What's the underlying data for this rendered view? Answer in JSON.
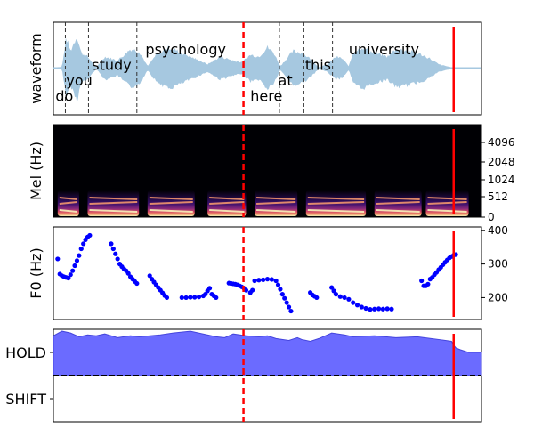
{
  "chart_data": [
    {
      "type": "area",
      "panel": "waveform",
      "ylabel": "waveform",
      "x_range": [
        0,
        1
      ],
      "waveform_color": "#a6c8e0",
      "envelope": {
        "x": [
          0.0,
          0.02,
          0.03,
          0.04,
          0.055,
          0.065,
          0.08,
          0.1,
          0.12,
          0.15,
          0.18,
          0.2,
          0.22,
          0.24,
          0.27,
          0.3,
          0.33,
          0.36,
          0.39,
          0.42,
          0.44,
          0.46,
          0.48,
          0.5,
          0.515,
          0.53,
          0.56,
          0.58,
          0.6,
          0.62,
          0.64,
          0.66,
          0.675,
          0.69,
          0.7,
          0.72,
          0.75,
          0.78,
          0.8,
          0.83,
          0.86,
          0.88,
          0.9,
          0.93,
          0.95,
          0.97,
          1.0
        ],
        "amp": [
          0.02,
          0.03,
          0.8,
          0.45,
          0.85,
          0.4,
          0.3,
          0.02,
          0.3,
          0.2,
          0.5,
          0.45,
          0.05,
          0.35,
          0.55,
          0.4,
          0.25,
          0.1,
          0.3,
          0.2,
          0.15,
          0.35,
          0.3,
          0.55,
          0.4,
          0.05,
          0.45,
          0.4,
          0.25,
          0.02,
          0.1,
          0.3,
          0.25,
          0.05,
          0.4,
          0.55,
          0.4,
          0.3,
          0.5,
          0.45,
          0.35,
          0.25,
          0.1,
          0.02,
          0.02,
          0.02,
          0.02
        ]
      },
      "word_labels": [
        {
          "text": "do",
          "x": 0.005,
          "y": -0.65
        },
        {
          "text": "you",
          "x": 0.03,
          "y": -0.28
        },
        {
          "text": "study",
          "x": 0.09,
          "y": 0.08
        },
        {
          "text": "psychology",
          "x": 0.215,
          "y": 0.45
        },
        {
          "text": "here",
          "x": 0.46,
          "y": -0.65
        },
        {
          "text": "at",
          "x": 0.525,
          "y": -0.28
        },
        {
          "text": "this",
          "x": 0.588,
          "y": 0.08
        },
        {
          "text": "university",
          "x": 0.69,
          "y": 0.45
        }
      ],
      "word_boundaries": [
        0.028,
        0.082,
        0.195,
        0.528,
        0.585,
        0.652
      ]
    },
    {
      "type": "heatmap",
      "panel": "mel-spectrogram",
      "ylabel": "Mel (Hz)",
      "yticks": [
        "0",
        "512",
        "1024",
        "2048",
        "4096"
      ],
      "x_range": [
        0,
        1
      ],
      "active_bands": [
        {
          "x0": 0.01,
          "x1": 0.06
        },
        {
          "x0": 0.08,
          "x1": 0.2
        },
        {
          "x0": 0.22,
          "x1": 0.33
        },
        {
          "x0": 0.36,
          "x1": 0.45
        },
        {
          "x0": 0.47,
          "x1": 0.57
        },
        {
          "x0": 0.59,
          "x1": 0.73
        },
        {
          "x0": 0.75,
          "x1": 0.86
        },
        {
          "x0": 0.87,
          "x1": 0.97
        }
      ]
    },
    {
      "type": "scatter",
      "panel": "pitch",
      "ylabel": "F0 (Hz)",
      "ylim": [
        135,
        410
      ],
      "yticks": [
        200,
        300,
        400
      ],
      "point_color": "#0000ff",
      "points": [
        [
          0.01,
          315
        ],
        [
          0.015,
          270
        ],
        [
          0.02,
          265
        ],
        [
          0.025,
          262
        ],
        [
          0.03,
          260
        ],
        [
          0.035,
          258
        ],
        [
          0.04,
          268
        ],
        [
          0.045,
          280
        ],
        [
          0.05,
          295
        ],
        [
          0.055,
          310
        ],
        [
          0.06,
          325
        ],
        [
          0.065,
          345
        ],
        [
          0.07,
          360
        ],
        [
          0.075,
          372
        ],
        [
          0.08,
          380
        ],
        [
          0.085,
          385
        ],
        [
          0.135,
          360
        ],
        [
          0.14,
          345
        ],
        [
          0.145,
          330
        ],
        [
          0.15,
          315
        ],
        [
          0.155,
          300
        ],
        [
          0.16,
          292
        ],
        [
          0.165,
          285
        ],
        [
          0.17,
          280
        ],
        [
          0.175,
          272
        ],
        [
          0.18,
          262
        ],
        [
          0.185,
          255
        ],
        [
          0.19,
          248
        ],
        [
          0.195,
          242
        ],
        [
          0.225,
          265
        ],
        [
          0.23,
          255
        ],
        [
          0.235,
          246
        ],
        [
          0.24,
          238
        ],
        [
          0.245,
          230
        ],
        [
          0.25,
          222
        ],
        [
          0.255,
          214
        ],
        [
          0.26,
          206
        ],
        [
          0.265,
          200
        ],
        [
          0.3,
          200
        ],
        [
          0.31,
          200
        ],
        [
          0.32,
          201
        ],
        [
          0.33,
          201
        ],
        [
          0.34,
          202
        ],
        [
          0.35,
          205
        ],
        [
          0.355,
          210
        ],
        [
          0.36,
          220
        ],
        [
          0.365,
          228
        ],
        [
          0.37,
          210
        ],
        [
          0.375,
          205
        ],
        [
          0.38,
          200
        ],
        [
          0.41,
          243
        ],
        [
          0.415,
          242
        ],
        [
          0.42,
          241
        ],
        [
          0.425,
          240
        ],
        [
          0.43,
          238
        ],
        [
          0.435,
          235
        ],
        [
          0.44,
          232
        ],
        [
          0.445,
          228
        ],
        [
          0.45,
          222
        ],
        [
          0.46,
          215
        ],
        [
          0.465,
          222
        ],
        [
          0.47,
          250
        ],
        [
          0.48,
          252
        ],
        [
          0.49,
          253
        ],
        [
          0.5,
          255
        ],
        [
          0.51,
          254
        ],
        [
          0.52,
          250
        ],
        [
          0.525,
          238
        ],
        [
          0.53,
          225
        ],
        [
          0.535,
          210
        ],
        [
          0.54,
          198
        ],
        [
          0.545,
          185
        ],
        [
          0.55,
          172
        ],
        [
          0.555,
          160
        ],
        [
          0.6,
          215
        ],
        [
          0.605,
          208
        ],
        [
          0.61,
          204
        ],
        [
          0.615,
          200
        ],
        [
          0.65,
          230
        ],
        [
          0.655,
          220
        ],
        [
          0.66,
          210
        ],
        [
          0.67,
          203
        ],
        [
          0.68,
          200
        ],
        [
          0.69,
          195
        ],
        [
          0.7,
          185
        ],
        [
          0.71,
          178
        ],
        [
          0.72,
          172
        ],
        [
          0.73,
          168
        ],
        [
          0.74,
          165
        ],
        [
          0.75,
          166
        ],
        [
          0.76,
          167
        ],
        [
          0.77,
          166
        ],
        [
          0.78,
          167
        ],
        [
          0.79,
          166
        ],
        [
          0.86,
          250
        ],
        [
          0.865,
          235
        ],
        [
          0.87,
          235
        ],
        [
          0.875,
          240
        ],
        [
          0.88,
          255
        ],
        [
          0.885,
          260
        ],
        [
          0.89,
          268
        ],
        [
          0.895,
          275
        ],
        [
          0.9,
          283
        ],
        [
          0.905,
          290
        ],
        [
          0.91,
          298
        ],
        [
          0.915,
          305
        ],
        [
          0.92,
          312
        ],
        [
          0.925,
          318
        ],
        [
          0.93,
          322
        ],
        [
          0.935,
          326
        ],
        [
          0.94,
          328
        ]
      ]
    },
    {
      "type": "area",
      "panel": "turn-taking",
      "yticks": [
        "HOLD",
        "SHIFT"
      ],
      "threshold": 0.5,
      "fill_color": "#6b6bff",
      "x": [
        0.0,
        0.02,
        0.04,
        0.06,
        0.08,
        0.1,
        0.12,
        0.15,
        0.18,
        0.2,
        0.25,
        0.28,
        0.3,
        0.32,
        0.35,
        0.38,
        0.4,
        0.42,
        0.45,
        0.48,
        0.5,
        0.52,
        0.55,
        0.57,
        0.58,
        0.6,
        0.62,
        0.65,
        0.68,
        0.7,
        0.75,
        0.8,
        0.85,
        0.9,
        0.93,
        0.935,
        0.94,
        0.95,
        0.97,
        0.99,
        1.0
      ],
      "values": [
        0.93,
        0.98,
        0.96,
        0.92,
        0.94,
        0.93,
        0.95,
        0.91,
        0.93,
        0.92,
        0.94,
        0.96,
        0.97,
        0.98,
        0.95,
        0.92,
        0.91,
        0.95,
        0.93,
        0.92,
        0.93,
        0.9,
        0.88,
        0.91,
        0.89,
        0.87,
        0.9,
        0.96,
        0.94,
        0.92,
        0.93,
        0.91,
        0.92,
        0.89,
        0.87,
        0.83,
        0.8,
        0.78,
        0.75,
        0.75,
        0.75
      ]
    }
  ],
  "markers": {
    "dashed_x": 0.444,
    "solid_x": 0.935,
    "color": "#ff0000"
  }
}
